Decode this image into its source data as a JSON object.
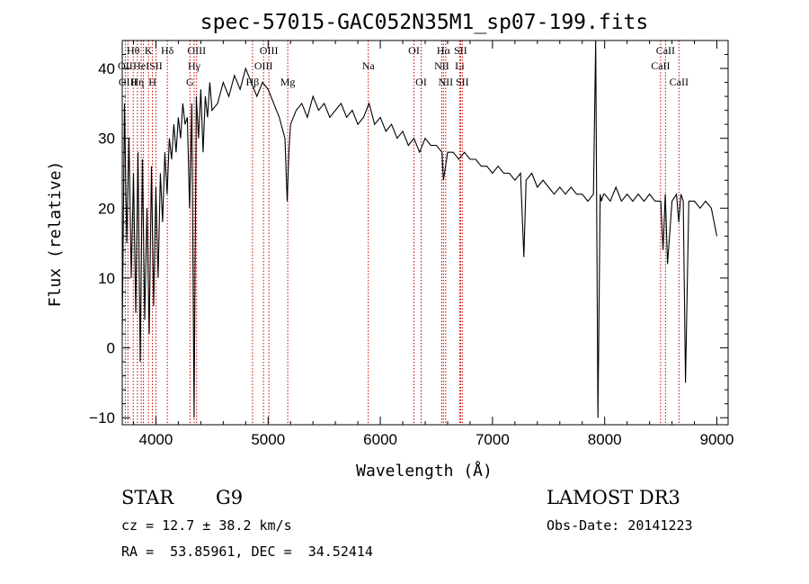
{
  "chart_data": {
    "type": "line",
    "title": "spec-57015-GAC052N35M1_sp07-199.fits",
    "xlabel": "Wavelength (Å)",
    "ylabel": "Flux (relative)",
    "xlim": [
      3700,
      9100
    ],
    "ylim": [
      -11,
      44
    ],
    "x_ticks": [
      4000,
      5000,
      6000,
      7000,
      8000,
      9000
    ],
    "x_tick_labels": [
      "4000",
      "5000",
      "6000",
      "7000",
      "8000",
      "9000"
    ],
    "y_ticks": [
      -10,
      0,
      10,
      20,
      30,
      40
    ],
    "y_tick_labels": [
      "−10",
      "0",
      "10",
      "20",
      "30",
      "40"
    ],
    "series": [
      {
        "name": "flux",
        "color": "#000000",
        "x": [
          3700,
          3720,
          3740,
          3760,
          3780,
          3800,
          3820,
          3840,
          3860,
          3880,
          3900,
          3920,
          3940,
          3960,
          3980,
          4000,
          4020,
          4040,
          4060,
          4080,
          4100,
          4120,
          4140,
          4160,
          4180,
          4200,
          4220,
          4240,
          4260,
          4280,
          4300,
          4320,
          4340,
          4360,
          4380,
          4400,
          4420,
          4440,
          4460,
          4480,
          4500,
          4550,
          4600,
          4650,
          4700,
          4750,
          4800,
          4850,
          4900,
          4950,
          5000,
          5050,
          5100,
          5150,
          5170,
          5185,
          5200,
          5250,
          5300,
          5350,
          5400,
          5450,
          5500,
          5550,
          5600,
          5650,
          5700,
          5750,
          5800,
          5850,
          5900,
          5950,
          6000,
          6050,
          6100,
          6150,
          6200,
          6250,
          6300,
          6350,
          6400,
          6450,
          6500,
          6550,
          6563,
          6600,
          6650,
          6700,
          6750,
          6800,
          6850,
          6900,
          6950,
          7000,
          7050,
          7100,
          7150,
          7200,
          7250,
          7280,
          7300,
          7350,
          7400,
          7450,
          7500,
          7550,
          7600,
          7650,
          7700,
          7750,
          7800,
          7850,
          7900,
          7920,
          7940,
          7960,
          7970,
          7990,
          8000,
          8050,
          8100,
          8150,
          8200,
          8250,
          8300,
          8350,
          8400,
          8450,
          8500,
          8520,
          8540,
          8560,
          8600,
          8640,
          8660,
          8680,
          8700,
          8720,
          8750,
          8800,
          8850,
          8900,
          8950,
          9000
        ],
        "y": [
          2,
          35,
          15,
          30,
          10,
          25,
          5,
          28,
          -2,
          27,
          4,
          20,
          2,
          26,
          6,
          23,
          10,
          25,
          18,
          28,
          22,
          30,
          27,
          32,
          28,
          33,
          30,
          35,
          32,
          33,
          20,
          35,
          -10,
          36,
          30,
          37,
          28,
          36,
          33,
          38,
          34,
          35,
          38,
          36,
          39,
          37,
          40,
          38,
          36,
          38,
          37,
          35,
          33,
          30,
          21,
          28,
          32,
          34,
          35,
          33,
          36,
          34,
          35,
          33,
          34,
          35,
          33,
          34,
          32,
          33,
          35,
          32,
          33,
          31,
          32,
          30,
          31,
          29,
          30,
          28,
          30,
          29,
          29,
          28,
          24,
          28,
          28,
          27,
          28,
          27,
          27,
          26,
          26,
          25,
          26,
          25,
          25,
          24,
          25,
          13,
          24,
          25,
          23,
          24,
          23,
          22,
          23,
          22,
          23,
          22,
          22,
          21,
          22,
          44,
          -10,
          22,
          21,
          22,
          22,
          21,
          23,
          21,
          22,
          21,
          22,
          21,
          22,
          21,
          21,
          14,
          22,
          12,
          21,
          22,
          18,
          22,
          21,
          -5,
          21,
          21,
          20,
          21,
          20,
          16
        ]
      }
    ],
    "emission_lines": [
      {
        "x": 3727,
        "label": "OII",
        "row": 1
      },
      {
        "x": 3750,
        "label": "OIII",
        "row": 2
      },
      {
        "x": 3798,
        "label": "Hθ",
        "row": 0
      },
      {
        "x": 3835,
        "label": "Hη",
        "row": 2
      },
      {
        "x": 3869,
        "label": "HeI",
        "row": 1
      },
      {
        "x": 3889,
        "label": "",
        "row": 0
      },
      {
        "x": 3934,
        "label": "K",
        "row": 0
      },
      {
        "x": 3969,
        "label": "H",
        "row": 2
      },
      {
        "x": 4000,
        "label": "SII",
        "row": 1
      },
      {
        "x": 4102,
        "label": "Hδ",
        "row": 0
      },
      {
        "x": 4304,
        "label": "G",
        "row": 2
      },
      {
        "x": 4341,
        "label": "Hγ",
        "row": 1
      },
      {
        "x": 4363,
        "label": "OIII",
        "row": 0
      },
      {
        "x": 4861,
        "label": "Hβ",
        "row": 2
      },
      {
        "x": 4959,
        "label": "OIII",
        "row": 1
      },
      {
        "x": 5007,
        "label": "OIII",
        "row": 0
      },
      {
        "x": 5175,
        "label": "Mg",
        "row": 2
      },
      {
        "x": 5893,
        "label": "Na",
        "row": 1
      },
      {
        "x": 6300,
        "label": "OI",
        "row": 0
      },
      {
        "x": 6364,
        "label": "OI",
        "row": 2
      },
      {
        "x": 6548,
        "label": "NII",
        "row": 1
      },
      {
        "x": 6563,
        "label": "Hα",
        "row": 0
      },
      {
        "x": 6583,
        "label": "NII",
        "row": 2
      },
      {
        "x": 6708,
        "label": "Li",
        "row": 1
      },
      {
        "x": 6716,
        "label": "SII",
        "row": 0
      },
      {
        "x": 6731,
        "label": "SII",
        "row": 2
      },
      {
        "x": 8498,
        "label": "CaII",
        "row": 1
      },
      {
        "x": 8542,
        "label": "CaII",
        "row": 0
      },
      {
        "x": 8662,
        "label": "CaII",
        "row": 2
      }
    ],
    "line_color": "#cc0000"
  },
  "info": {
    "object_class": "STAR",
    "subclass": "G9",
    "survey": "LAMOST DR3",
    "redshift": "cz = 12.7 ± 38.2 km/s",
    "obs_date": "Obs-Date: 20141223",
    "coords": "RA =  53.85961, DEC =  34.52414"
  }
}
